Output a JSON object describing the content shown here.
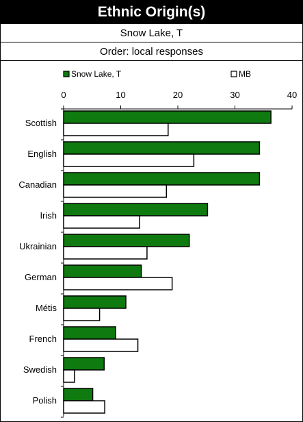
{
  "chart_data": {
    "type": "bar",
    "orientation": "horizontal",
    "title": "Ethnic Origin(s)",
    "subtitle_lines": [
      "Snow Lake, T",
      "Order: local responses"
    ],
    "categories": [
      "Scottish",
      "English",
      "Canadian",
      "Irish",
      "Ukrainian",
      "German",
      "Métis",
      "French",
      "Swedish",
      "Polish"
    ],
    "series": [
      {
        "name": "Snow Lake, T",
        "color": "#0f7a0f",
        "values": [
          36.3,
          34.3,
          34.3,
          25.2,
          22.0,
          13.6,
          10.9,
          9.1,
          7.1,
          5.1
        ]
      },
      {
        "name": "MB",
        "color": "#ffffff",
        "values": [
          18.3,
          22.8,
          18.0,
          13.3,
          14.6,
          19.0,
          6.3,
          13.0,
          1.9,
          7.2
        ]
      }
    ],
    "xlim": [
      0,
      40
    ],
    "xticks": [
      0,
      10,
      20,
      30,
      40
    ],
    "legend_position": "top",
    "grid": false
  }
}
